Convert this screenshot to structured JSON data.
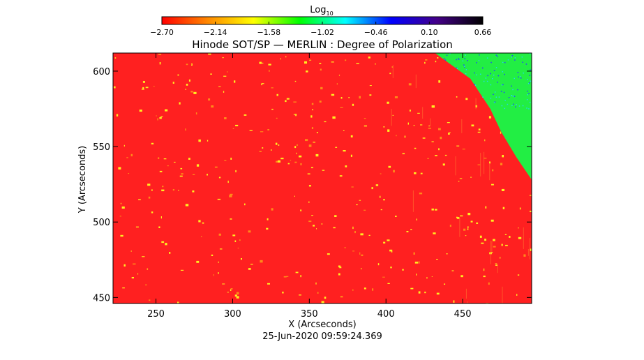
{
  "colorbar": {
    "title_base": "Log",
    "title_sub": "10",
    "ticks": [
      "-2.70",
      "-2.14",
      "-1.58",
      "-1.02",
      "-0.46",
      "0.10",
      "0.66"
    ]
  },
  "footer": {
    "timestamp": "25-Jun-2020 09:59:24.369"
  },
  "colors": {
    "background": "#ff2020",
    "offlimb": "#22ee44",
    "feature": "#ffee22",
    "dot_cyan": "#22d8e8",
    "dot_blue": "#2244ff"
  },
  "chart_data": {
    "type": "heatmap",
    "title": "Hinode SOT/SP — MERLIN : Degree of Polarization",
    "xlabel": "X (Arcseconds)",
    "ylabel": "Y (Arcseconds)",
    "xlim": [
      222,
      495
    ],
    "ylim": [
      446,
      612
    ],
    "x_ticks": [
      250,
      300,
      350,
      400,
      450
    ],
    "y_ticks": [
      450,
      500,
      550,
      600
    ],
    "color_scale": {
      "min": -2.7,
      "max": 0.66,
      "stops": [
        "#ff0000",
        "#ff8800",
        "#ffff00",
        "#00ff00",
        "#00ffff",
        "#0000ff",
        "#440088",
        "#000000"
      ]
    },
    "limb_boundary": [
      [
        432,
        612
      ],
      [
        455,
        595
      ],
      [
        468,
        575
      ],
      [
        475,
        560
      ],
      [
        485,
        543
      ],
      [
        495,
        528
      ]
    ]
  }
}
